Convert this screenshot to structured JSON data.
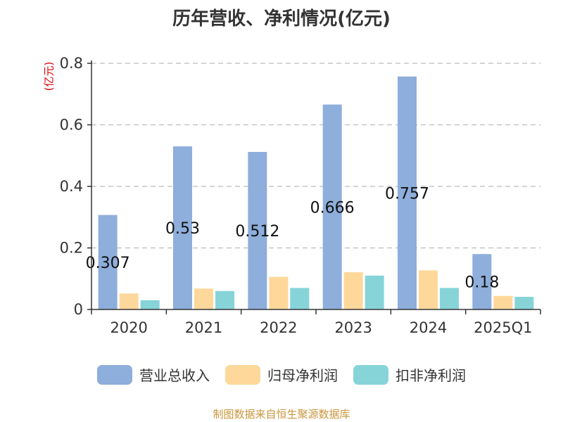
{
  "chart_data": {
    "type": "bar",
    "title": "历年营收、净利情况(亿元)",
    "ylabel": "(亿元)",
    "categories": [
      "2020",
      "2021",
      "2022",
      "2023",
      "2024",
      "2025Q1"
    ],
    "series": [
      {
        "name": "营业总收入",
        "color": "#8eaedb",
        "values": [
          0.307,
          0.53,
          0.512,
          0.666,
          0.757,
          0.18
        ],
        "labels": [
          "0.307",
          "0.53",
          "0.512",
          "0.666",
          "0.757",
          "0.18"
        ]
      },
      {
        "name": "归母净利润",
        "color": "#fdd89a",
        "values": [
          0.052,
          0.068,
          0.106,
          0.121,
          0.127,
          0.044
        ]
      },
      {
        "name": "扣非净利润",
        "color": "#86d4d8",
        "values": [
          0.03,
          0.06,
          0.07,
          0.11,
          0.07,
          0.041
        ]
      }
    ],
    "yticks": [
      "0",
      "0.2",
      "0.4",
      "0.6",
      "0.8"
    ],
    "ylim": [
      0,
      0.8
    ],
    "grid": true,
    "legend_position": "bottom"
  },
  "source": "制图数据来自恒生聚源数据库"
}
